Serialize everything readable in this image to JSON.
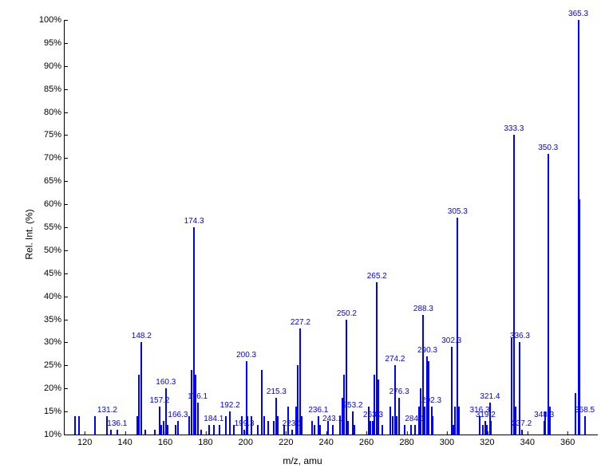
{
  "chart": {
    "type": "mass-spectrum",
    "xlabel": "m/z, amu",
    "ylabel": "Rel. Int. (%)",
    "background_color": "#ffffff",
    "peak_color": "#0000ff",
    "label_color": "#0000ff",
    "axis_color": "#000000",
    "font_family": "Arial",
    "label_fontsize": 10,
    "axis_fontsize": 11,
    "title_fontsize": 12,
    "xlim": [
      110,
      375
    ],
    "ylim": [
      10,
      100
    ],
    "xtick_step": 20,
    "xtick_start": 120,
    "ytick_step": 5,
    "xticks": [
      120,
      140,
      160,
      180,
      200,
      220,
      240,
      260,
      280,
      300,
      320,
      340,
      360
    ],
    "yticks": [
      10,
      15,
      20,
      25,
      30,
      35,
      40,
      45,
      50,
      55,
      60,
      65,
      70,
      75,
      80,
      85,
      90,
      95,
      100
    ],
    "peaks": [
      {
        "mz": 115,
        "intensity": 14
      },
      {
        "mz": 117,
        "intensity": 14
      },
      {
        "mz": 125,
        "intensity": 14
      },
      {
        "mz": 131.2,
        "intensity": 14,
        "label": "131.2"
      },
      {
        "mz": 133,
        "intensity": 11
      },
      {
        "mz": 136.1,
        "intensity": 11,
        "label": "136.1"
      },
      {
        "mz": 146,
        "intensity": 14
      },
      {
        "mz": 147,
        "intensity": 23
      },
      {
        "mz": 148.2,
        "intensity": 30,
        "label": "148.2"
      },
      {
        "mz": 150,
        "intensity": 11
      },
      {
        "mz": 155,
        "intensity": 11
      },
      {
        "mz": 157.2,
        "intensity": 16,
        "label": "157.2"
      },
      {
        "mz": 158,
        "intensity": 12
      },
      {
        "mz": 159,
        "intensity": 13
      },
      {
        "mz": 160.3,
        "intensity": 20,
        "label": "160.3"
      },
      {
        "mz": 161,
        "intensity": 12
      },
      {
        "mz": 165,
        "intensity": 12
      },
      {
        "mz": 166.3,
        "intensity": 13,
        "label": "166.3"
      },
      {
        "mz": 172,
        "intensity": 14
      },
      {
        "mz": 173,
        "intensity": 24
      },
      {
        "mz": 174.3,
        "intensity": 55,
        "label": "174.3"
      },
      {
        "mz": 175,
        "intensity": 23
      },
      {
        "mz": 176.1,
        "intensity": 17,
        "label": "176.1"
      },
      {
        "mz": 178,
        "intensity": 11
      },
      {
        "mz": 182,
        "intensity": 12
      },
      {
        "mz": 184.1,
        "intensity": 12,
        "label": "184.1"
      },
      {
        "mz": 187,
        "intensity": 12
      },
      {
        "mz": 190,
        "intensity": 14
      },
      {
        "mz": 192.2,
        "intensity": 15,
        "label": "192.2"
      },
      {
        "mz": 194,
        "intensity": 12
      },
      {
        "mz": 198,
        "intensity": 14
      },
      {
        "mz": 199.3,
        "intensity": 11,
        "label": "199.3"
      },
      {
        "mz": 200.3,
        "intensity": 26,
        "label": "200.3"
      },
      {
        "mz": 201,
        "intensity": 14
      },
      {
        "mz": 203,
        "intensity": 14
      },
      {
        "mz": 206,
        "intensity": 12
      },
      {
        "mz": 208,
        "intensity": 24
      },
      {
        "mz": 209,
        "intensity": 14
      },
      {
        "mz": 211,
        "intensity": 13
      },
      {
        "mz": 214,
        "intensity": 13
      },
      {
        "mz": 215.3,
        "intensity": 18,
        "label": "215.3"
      },
      {
        "mz": 216,
        "intensity": 14
      },
      {
        "mz": 219,
        "intensity": 12
      },
      {
        "mz": 221,
        "intensity": 16
      },
      {
        "mz": 223.1,
        "intensity": 11,
        "label": "223.1"
      },
      {
        "mz": 225,
        "intensity": 16
      },
      {
        "mz": 226,
        "intensity": 25
      },
      {
        "mz": 227.2,
        "intensity": 33,
        "label": "227.2"
      },
      {
        "mz": 228,
        "intensity": 14
      },
      {
        "mz": 233,
        "intensity": 13
      },
      {
        "mz": 234,
        "intensity": 12
      },
      {
        "mz": 236.1,
        "intensity": 14,
        "label": "236.1"
      },
      {
        "mz": 237,
        "intensity": 12
      },
      {
        "mz": 241,
        "intensity": 13
      },
      {
        "mz": 243.1,
        "intensity": 12,
        "label": "243.1"
      },
      {
        "mz": 247,
        "intensity": 14
      },
      {
        "mz": 248,
        "intensity": 18
      },
      {
        "mz": 249,
        "intensity": 23
      },
      {
        "mz": 250.2,
        "intensity": 35,
        "label": "250.2"
      },
      {
        "mz": 251,
        "intensity": 13
      },
      {
        "mz": 253.2,
        "intensity": 15,
        "label": "253.2"
      },
      {
        "mz": 254,
        "intensity": 12
      },
      {
        "mz": 261,
        "intensity": 16
      },
      {
        "mz": 262,
        "intensity": 13
      },
      {
        "mz": 263.3,
        "intensity": 13,
        "label": "263.3"
      },
      {
        "mz": 264,
        "intensity": 23
      },
      {
        "mz": 265.2,
        "intensity": 43,
        "label": "265.2"
      },
      {
        "mz": 266,
        "intensity": 22
      },
      {
        "mz": 268,
        "intensity": 12
      },
      {
        "mz": 272,
        "intensity": 16
      },
      {
        "mz": 273,
        "intensity": 14
      },
      {
        "mz": 274.2,
        "intensity": 25,
        "label": "274.2"
      },
      {
        "mz": 275,
        "intensity": 14
      },
      {
        "mz": 276.3,
        "intensity": 18,
        "label": "276.3"
      },
      {
        "mz": 279,
        "intensity": 12
      },
      {
        "mz": 282,
        "intensity": 12
      },
      {
        "mz": 284.1,
        "intensity": 12,
        "label": "284.1"
      },
      {
        "mz": 286,
        "intensity": 16
      },
      {
        "mz": 287,
        "intensity": 20
      },
      {
        "mz": 288.3,
        "intensity": 36,
        "label": "288.3"
      },
      {
        "mz": 289,
        "intensity": 16
      },
      {
        "mz": 290.3,
        "intensity": 27,
        "label": "290.3"
      },
      {
        "mz": 291,
        "intensity": 26
      },
      {
        "mz": 292.3,
        "intensity": 16,
        "label": "292.3"
      },
      {
        "mz": 293,
        "intensity": 14
      },
      {
        "mz": 302.3,
        "intensity": 29,
        "label": "302.3"
      },
      {
        "mz": 303,
        "intensity": 12
      },
      {
        "mz": 304,
        "intensity": 16
      },
      {
        "mz": 305.3,
        "intensity": 57,
        "label": "305.3"
      },
      {
        "mz": 306,
        "intensity": 16
      },
      {
        "mz": 316.3,
        "intensity": 14,
        "label": "316.3"
      },
      {
        "mz": 318,
        "intensity": 12
      },
      {
        "mz": 319.2,
        "intensity": 13,
        "label": "319.2"
      },
      {
        "mz": 320,
        "intensity": 12
      },
      {
        "mz": 321.4,
        "intensity": 17,
        "label": "321.4"
      },
      {
        "mz": 322,
        "intensity": 13
      },
      {
        "mz": 332,
        "intensity": 31
      },
      {
        "mz": 333.3,
        "intensity": 75,
        "label": "333.3"
      },
      {
        "mz": 334,
        "intensity": 16
      },
      {
        "mz": 336.3,
        "intensity": 30,
        "label": "336.3"
      },
      {
        "mz": 337.2,
        "intensity": 11,
        "label": "337.2"
      },
      {
        "mz": 348.3,
        "intensity": 13,
        "label": "348.3"
      },
      {
        "mz": 349,
        "intensity": 15
      },
      {
        "mz": 350.3,
        "intensity": 71,
        "label": "350.3"
      },
      {
        "mz": 351,
        "intensity": 16
      },
      {
        "mz": 364,
        "intensity": 19
      },
      {
        "mz": 365.3,
        "intensity": 100,
        "label": "365.3"
      },
      {
        "mz": 366,
        "intensity": 61
      },
      {
        "mz": 368.5,
        "intensity": 14,
        "label": "368.5"
      }
    ]
  }
}
